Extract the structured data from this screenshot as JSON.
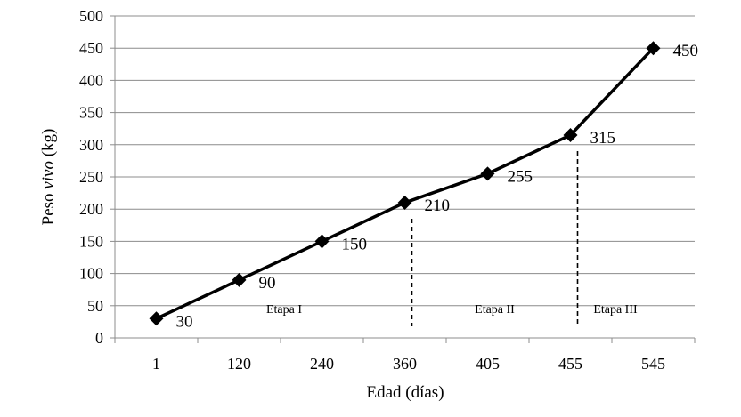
{
  "chart_data": {
    "type": "line",
    "categories": [
      "1",
      "120",
      "240",
      "360",
      "405",
      "455",
      "545"
    ],
    "series": [
      {
        "values": [
          30,
          90,
          150,
          210,
          255,
          315,
          450
        ]
      }
    ],
    "data_labels": [
      "30",
      "90",
      "150",
      "210",
      "255",
      "315",
      "450"
    ],
    "xlabel": "Edad (días)",
    "ylabel_parts": [
      "Peso ",
      "vivo",
      " (kg)"
    ],
    "ylim": [
      0,
      500
    ],
    "yticks": [
      "0",
      "50",
      "100",
      "150",
      "200",
      "250",
      "300",
      "350",
      "400",
      "450",
      "500"
    ],
    "grid": "horizontal",
    "line_color": "#000000",
    "marker": "diamond",
    "stages": [
      {
        "label": "Etapa I",
        "from": "1",
        "to": "360"
      },
      {
        "label": "Etapa II",
        "from": "360",
        "to": "455"
      },
      {
        "label": "Etapa III",
        "from": "455",
        "to": "545"
      }
    ],
    "stage_dividers_after": [
      "360",
      "455"
    ]
  }
}
